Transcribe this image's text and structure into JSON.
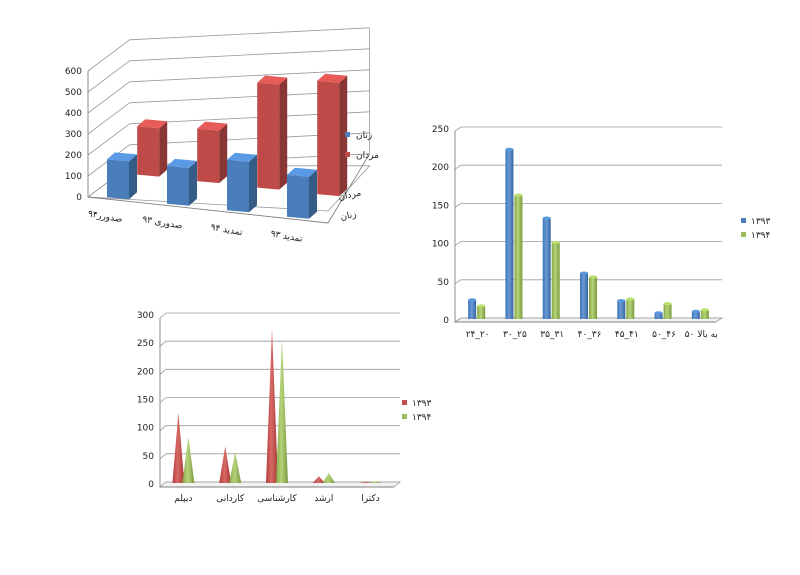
{
  "chart_data": [
    {
      "type": "bar",
      "variant": "3d-grouped-depth",
      "categories": [
        "صدورر۹۴",
        "صدوری ۹۳",
        "تمدید ۹۴",
        "تمدید ۹۳"
      ],
      "series": [
        {
          "name": "زنان",
          "values": [
            180,
            180,
            240,
            200
          ],
          "color": "#4a7ebb"
        },
        {
          "name": "مردان",
          "values": [
            230,
            250,
            500,
            540
          ],
          "color": "#be4b48"
        }
      ],
      "depth_labels": [
        "مردان",
        "زنان"
      ],
      "y_ticks": [
        "0",
        "100",
        "200",
        "300",
        "400",
        "500",
        "600"
      ],
      "ylim": [
        0,
        600
      ],
      "grid": true,
      "legend": "right"
    },
    {
      "type": "bar",
      "variant": "3d-clustered",
      "categories": [
        "۲۴_۲۰",
        "۳۰_۲۵",
        "۳۵_۳۱",
        "۴۰_۳۶",
        "۴۵_۴۱",
        "۵۰_۴۶",
        "۵۰ به بالا"
      ],
      "series": [
        {
          "name": "۱۳۹۳",
          "values": [
            25,
            222,
            132,
            60,
            24,
            8,
            10
          ],
          "color": "#4a7ebb"
        },
        {
          "name": "۱۳۹۴",
          "values": [
            17,
            162,
            100,
            55,
            26,
            20,
            12
          ],
          "color": "#9bbb59"
        }
      ],
      "y_ticks": [
        "0",
        "50",
        "100",
        "150",
        "200",
        "250"
      ],
      "ylim": [
        0,
        250
      ],
      "grid": true,
      "legend": "right"
    },
    {
      "type": "bar",
      "variant": "3d-cone",
      "categories": [
        "دیپلم",
        "کاردانی",
        "کارشناسی",
        "ارشد",
        "دکترا"
      ],
      "series": [
        {
          "name": "۱۳۹۳",
          "values": [
            125,
            65,
            275,
            12,
            2
          ],
          "color": "#c0504d"
        },
        {
          "name": "۱۳۹۴",
          "values": [
            82,
            55,
            255,
            18,
            3
          ],
          "color": "#9bbb59"
        }
      ],
      "y_ticks": [
        "0",
        "50",
        "100",
        "150",
        "200",
        "250",
        "300"
      ],
      "ylim": [
        0,
        300
      ],
      "grid": true,
      "legend": "right"
    }
  ]
}
